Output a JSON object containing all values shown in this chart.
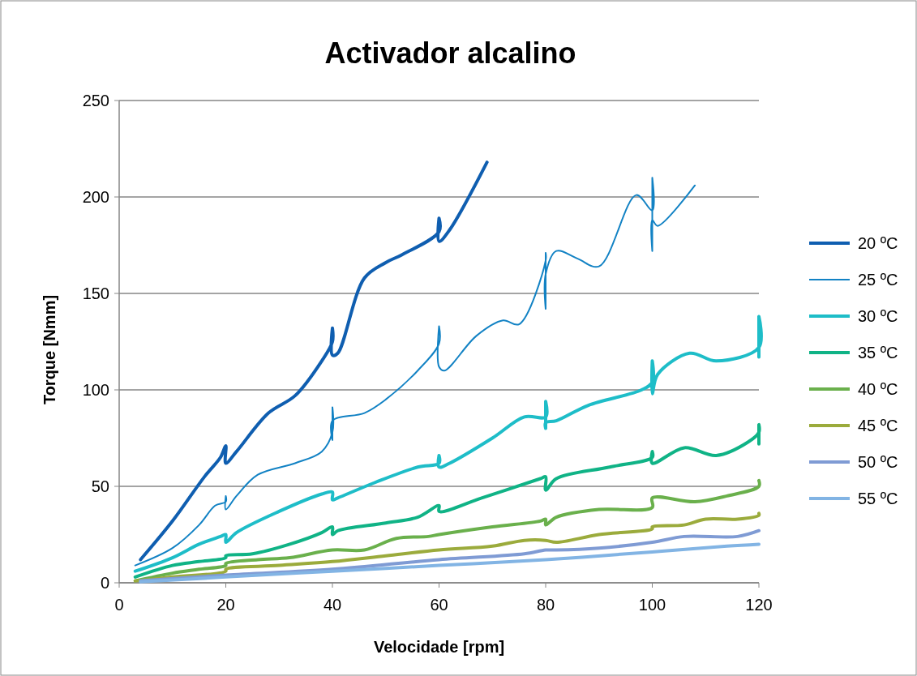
{
  "chart_data": {
    "type": "line",
    "title": "Activador alcalino",
    "xlabel": "Velocidade  [rpm]",
    "ylabel": "Torque [Nmm]",
    "xlim": [
      0,
      120
    ],
    "xticks": [
      0,
      20,
      40,
      60,
      80,
      100,
      120
    ],
    "ylim": [
      0,
      250
    ],
    "yticks": [
      0,
      50,
      100,
      150,
      200,
      250
    ],
    "grid": "y",
    "legend": "right",
    "marker": "none",
    "line_style": "solid",
    "series": [
      {
        "name": "20 ºC",
        "color": "#0f5eb0",
        "x": [
          4,
          10,
          16,
          19,
          20,
          20,
          22,
          28,
          33,
          38,
          40,
          40,
          40,
          41,
          46,
          50,
          53,
          60,
          60,
          60,
          62,
          69
        ],
        "values": [
          12,
          32,
          55,
          65,
          71,
          62,
          68,
          88,
          97,
          115,
          125,
          132,
          118,
          119,
          158,
          166,
          170,
          182,
          189,
          177,
          183,
          218
        ]
      },
      {
        "name": "25 ºC",
        "color": "#1282c4",
        "x": [
          3,
          10,
          15,
          18,
          20,
          20,
          20,
          22,
          26,
          33,
          38,
          40,
          40,
          40,
          40,
          46,
          50,
          56,
          60,
          60,
          60,
          61,
          67,
          72,
          75,
          80,
          80,
          80,
          80,
          82,
          86,
          90,
          97,
          100,
          100,
          100,
          100,
          101,
          108
        ],
        "values": [
          9,
          18,
          30,
          40,
          42,
          45,
          38,
          45,
          56,
          62,
          68,
          78,
          91,
          74,
          84,
          88,
          95,
          110,
          124,
          133,
          112,
          110,
          128,
          136,
          134,
          167,
          171,
          142,
          160,
          172,
          168,
          164,
          201,
          193,
          210,
          172,
          188,
          185,
          206
        ]
      },
      {
        "name": "30 ºC",
        "color": "#1ebdc8",
        "x": [
          3,
          10,
          15,
          19,
          20,
          20,
          22,
          30,
          38,
          40,
          40,
          41,
          48,
          56,
          60,
          60,
          60,
          62,
          70,
          76,
          80,
          80,
          80,
          80,
          82,
          88,
          98,
          100,
          100,
          100,
          101,
          107,
          112,
          120,
          120,
          120
        ],
        "values": [
          6,
          13,
          20,
          24,
          25,
          21,
          26,
          37,
          46,
          47,
          43,
          44,
          52,
          60,
          62,
          66,
          60,
          62,
          75,
          86,
          86,
          94,
          80,
          83,
          84,
          92,
          100,
          104,
          115,
          98,
          108,
          119,
          115,
          122,
          138,
          117
        ]
      },
      {
        "name": "35 ºC",
        "color": "#10b386",
        "x": [
          3,
          10,
          15,
          20,
          20,
          25,
          32,
          38,
          40,
          40,
          41,
          50,
          56,
          60,
          60,
          68,
          79,
          80,
          80,
          82,
          92,
          100,
          100,
          100,
          106,
          112,
          118,
          120,
          120,
          120
        ],
        "values": [
          3,
          9,
          11,
          13,
          14,
          15,
          20,
          26,
          29,
          25,
          27,
          31,
          34,
          40,
          37,
          44,
          54,
          55,
          48,
          54,
          60,
          65,
          68,
          62,
          70,
          66,
          73,
          78,
          82,
          72
        ]
      },
      {
        "name": "40 ºC",
        "color": "#6ab04c",
        "x": [
          3,
          10,
          15,
          20,
          20,
          26,
          32,
          40,
          46,
          52,
          58,
          60,
          70,
          79,
          80,
          80,
          82,
          90,
          100,
          100,
          108,
          114,
          120,
          120
        ],
        "values": [
          1,
          5,
          7,
          9,
          10,
          12,
          13,
          17,
          17,
          23,
          24,
          25,
          29,
          32,
          33,
          30,
          34,
          38,
          39,
          44,
          42,
          45,
          50,
          53
        ]
      },
      {
        "name": "45 ºC",
        "color": "#9bab3c",
        "x": [
          3,
          10,
          20,
          20,
          30,
          40,
          50,
          60,
          70,
          76,
          80,
          82,
          90,
          100,
          100,
          106,
          110,
          116,
          120,
          120
        ],
        "values": [
          1,
          3,
          6,
          7,
          9,
          11,
          14,
          17,
          19,
          22,
          22,
          21,
          25,
          28,
          29,
          30,
          33,
          33,
          35,
          36
        ]
      },
      {
        "name": "50 ºC",
        "color": "#7f9bd4",
        "x": [
          4,
          20,
          40,
          60,
          76,
          80,
          82,
          90,
          100,
          106,
          116,
          120
        ],
        "values": [
          1,
          4,
          7,
          12,
          15,
          17,
          17,
          18,
          21,
          24,
          24,
          27
        ]
      },
      {
        "name": "55 ºC",
        "color": "#82b4e4",
        "x": [
          4,
          20,
          40,
          60,
          80,
          100,
          114,
          120
        ],
        "values": [
          0.5,
          3,
          6,
          9,
          12,
          16,
          19,
          20
        ]
      }
    ]
  }
}
